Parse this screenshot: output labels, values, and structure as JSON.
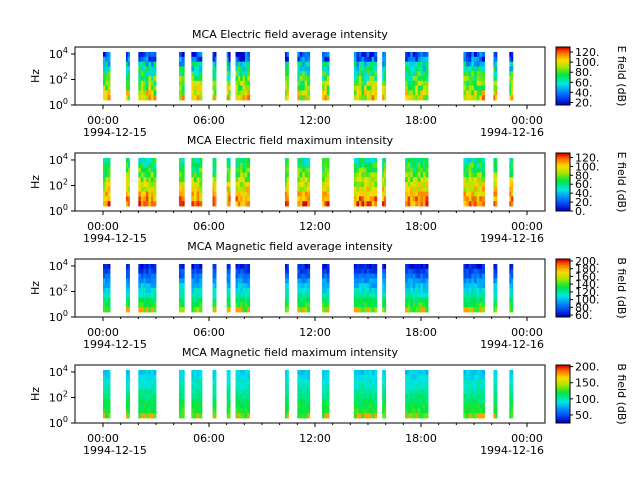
{
  "chart_data": [
    {
      "type": "heatmap",
      "title": "MCA  Electric field average intensity",
      "ylabel": "Hz",
      "y_scale": "log",
      "y_ticks": [
        "10^0",
        "10^2",
        "10^4"
      ],
      "x_ticks": [
        "00:00",
        "06:00",
        "12:00",
        "18:00",
        "00:00"
      ],
      "x_start_date": "1994-12-15",
      "x_end_date": "1994-12-16",
      "colorbar_label": "E field (dB)",
      "colorbar_ticks": [
        "20.",
        "40.",
        "60.",
        "80.",
        "100.",
        "120."
      ],
      "colorbar_range": [
        15,
        130
      ]
    },
    {
      "type": "heatmap",
      "title": "MCA  Electric field maximum intensity",
      "ylabel": "Hz",
      "y_scale": "log",
      "y_ticks": [
        "10^0",
        "10^2",
        "10^4"
      ],
      "x_ticks": [
        "00:00",
        "06:00",
        "12:00",
        "18:00",
        "00:00"
      ],
      "x_start_date": "1994-12-15",
      "x_end_date": "1994-12-16",
      "colorbar_label": "E field (dB)",
      "colorbar_ticks": [
        "0.",
        "20.",
        "40.",
        "60.",
        "80.",
        "100.",
        "120."
      ],
      "colorbar_range": [
        0,
        130
      ]
    },
    {
      "type": "heatmap",
      "title": "MCA  Magnetic field average intensity",
      "ylabel": "Hz",
      "y_scale": "log",
      "y_ticks": [
        "10^0",
        "10^2",
        "10^4"
      ],
      "x_ticks": [
        "00:00",
        "06:00",
        "12:00",
        "18:00",
        "00:00"
      ],
      "x_start_date": "1994-12-15",
      "x_end_date": "1994-12-16",
      "colorbar_label": "B field (dB)",
      "colorbar_ticks": [
        "60.",
        "80.",
        "100.",
        "120.",
        "140.",
        "160.",
        "180.",
        "200."
      ],
      "colorbar_range": [
        55,
        205
      ]
    },
    {
      "type": "heatmap",
      "title": "MCA  Magnetic field maximum intensity",
      "ylabel": "Hz",
      "y_scale": "log",
      "y_ticks": [
        "10^0",
        "10^2",
        "10^4"
      ],
      "x_ticks": [
        "00:00",
        "06:00",
        "12:00",
        "18:00",
        "00:00"
      ],
      "x_start_date": "1994-12-15",
      "x_end_date": "1994-12-16",
      "colorbar_label": "B field (dB)",
      "colorbar_ticks": [
        "50.",
        "100.",
        "150.",
        "200."
      ],
      "colorbar_range": [
        25,
        205
      ]
    }
  ]
}
